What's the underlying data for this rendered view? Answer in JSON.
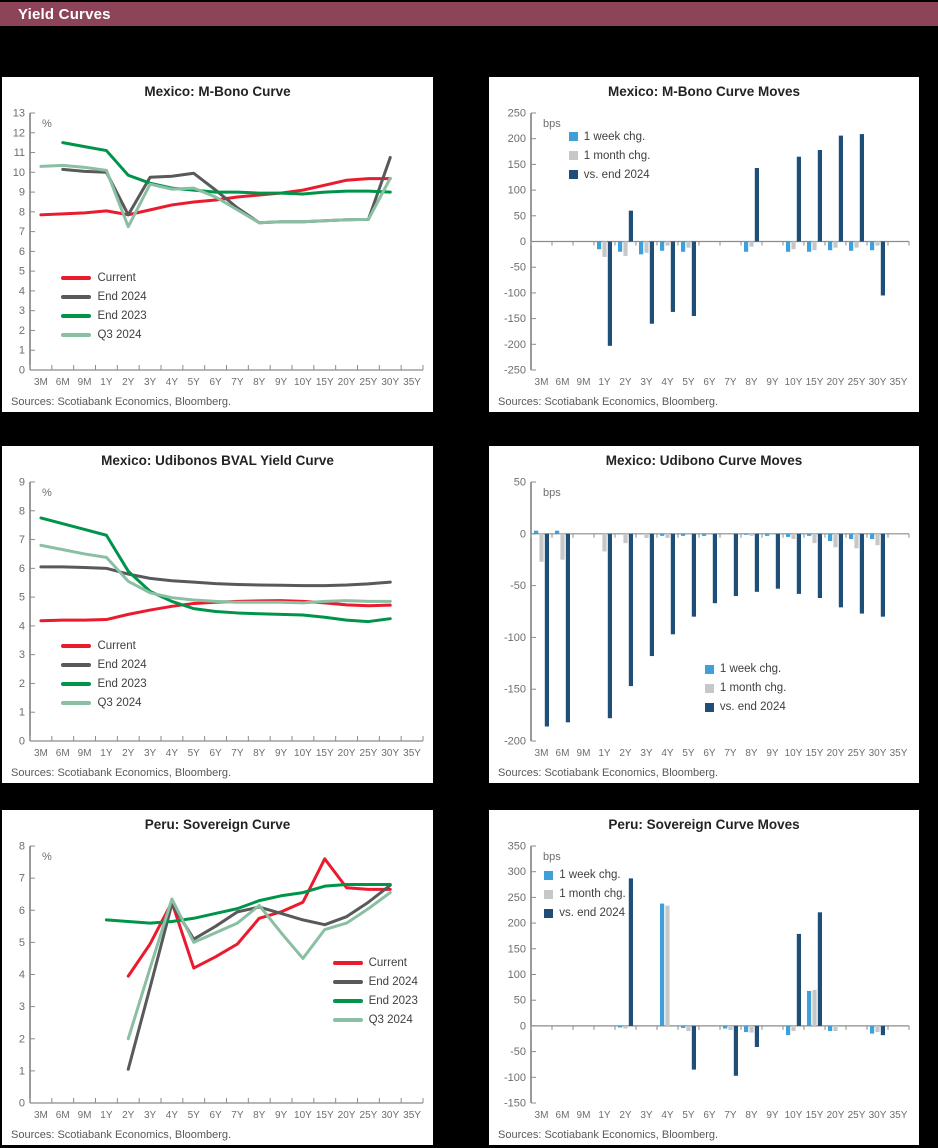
{
  "header": {
    "title": "Yield Curves",
    "bar_color": "#8D4458"
  },
  "sources_label": "Sources: Scotiabank Economics, Bloomberg.",
  "colors": {
    "current_red": "#EA1B2E",
    "end2024_gray": "#58595B",
    "end2023_green": "#00944A",
    "q32024_lightgreen": "#8ABFA3",
    "week_lightblue": "#3F9FD8",
    "month_gray": "#C6C7C9",
    "vs_end_navy": "#1F4E79",
    "axis_gray": "#6D6E71"
  },
  "chart_data": [
    {
      "type": "line",
      "title": "Mexico: M-Bono Curve",
      "unit": "%",
      "ylim": [
        0,
        13
      ],
      "ytick_step": 1,
      "legend_pos": {
        "x": 0.08,
        "y": 0.62
      },
      "categories": [
        "3M",
        "6M",
        "9M",
        "1Y",
        "2Y",
        "3Y",
        "4Y",
        "5Y",
        "6Y",
        "7Y",
        "8Y",
        "9Y",
        "10Y",
        "15Y",
        "20Y",
        "25Y",
        "30Y",
        "35Y"
      ],
      "series": [
        {
          "name": "Current",
          "color": "#EA1B2E",
          "values": [
            7.85,
            7.9,
            7.95,
            8.05,
            7.85,
            8.1,
            8.35,
            8.5,
            8.6,
            8.75,
            8.85,
            8.95,
            9.1,
            9.35,
            9.6,
            9.68,
            9.68,
            null
          ]
        },
        {
          "name": "End 2024",
          "color": "#58595B",
          "values": [
            null,
            10.15,
            10.05,
            10.0,
            7.85,
            9.75,
            9.8,
            9.95,
            9.1,
            8.2,
            7.45,
            7.5,
            7.5,
            7.55,
            7.6,
            7.62,
            10.75,
            null
          ]
        },
        {
          "name": "End 2023",
          "color": "#00944A",
          "values": [
            null,
            11.5,
            11.3,
            11.1,
            9.85,
            9.45,
            9.2,
            9.1,
            9.0,
            9.0,
            8.95,
            8.95,
            8.9,
            9.0,
            9.05,
            9.05,
            9.0,
            null
          ]
        },
        {
          "name": "Q3 2024",
          "color": "#8ABFA3",
          "values": [
            10.3,
            10.35,
            10.25,
            10.1,
            7.25,
            9.4,
            9.15,
            9.2,
            8.75,
            8.1,
            7.45,
            7.5,
            7.5,
            7.55,
            7.6,
            7.62,
            9.7,
            null
          ]
        }
      ]
    },
    {
      "type": "bar",
      "title": "Mexico: M-Bono Curve Moves",
      "unit": "bps",
      "ylim": [
        -250,
        250
      ],
      "ytick_step": 50,
      "legend_pos": {
        "x": 0.1,
        "y": 0.07
      },
      "categories": [
        "3M",
        "6M",
        "9M",
        "1Y",
        "2Y",
        "3Y",
        "4Y",
        "5Y",
        "6Y",
        "7Y",
        "8Y",
        "9Y",
        "10Y",
        "15Y",
        "20Y",
        "25Y",
        "30Y",
        "35Y"
      ],
      "series": [
        {
          "name": "1 week chg.",
          "color": "#3F9FD8",
          "values": [
            null,
            null,
            null,
            -15,
            -20,
            -25,
            -18,
            -20,
            null,
            null,
            -20,
            null,
            -20,
            -20,
            -17,
            -18,
            -17,
            null
          ]
        },
        {
          "name": "1 month chg.",
          "color": "#C6C7C9",
          "values": [
            null,
            null,
            null,
            -30,
            -28,
            -22,
            -8,
            -12,
            null,
            null,
            -10,
            null,
            -15,
            -17,
            -12,
            -12,
            -8,
            null
          ]
        },
        {
          "name": "vs. end 2024",
          "color": "#1F4E79",
          "values": [
            null,
            null,
            null,
            -203,
            60,
            -160,
            -137,
            -145,
            null,
            null,
            143,
            null,
            165,
            178,
            206,
            209,
            -105,
            null
          ]
        }
      ]
    },
    {
      "type": "line",
      "title": "Mexico: Udibonos BVAL Yield Curve",
      "unit": "%",
      "ylim": [
        0,
        9
      ],
      "ytick_step": 1,
      "legend_pos": {
        "x": 0.08,
        "y": 0.61
      },
      "categories": [
        "3M",
        "6M",
        "9M",
        "1Y",
        "2Y",
        "3Y",
        "4Y",
        "5Y",
        "6Y",
        "7Y",
        "8Y",
        "9Y",
        "10Y",
        "15Y",
        "20Y",
        "25Y",
        "30Y",
        "35Y"
      ],
      "series": [
        {
          "name": "Current",
          "color": "#EA1B2E",
          "values": [
            4.18,
            4.2,
            4.2,
            4.22,
            4.4,
            4.55,
            4.68,
            4.78,
            4.82,
            4.85,
            4.87,
            4.88,
            4.85,
            4.8,
            4.73,
            4.7,
            4.72,
            null
          ]
        },
        {
          "name": "End 2024",
          "color": "#58595B",
          "values": [
            6.05,
            6.05,
            6.03,
            6.0,
            5.8,
            5.65,
            5.57,
            5.52,
            5.47,
            5.44,
            5.42,
            5.41,
            5.4,
            5.4,
            5.42,
            5.46,
            5.52,
            null
          ]
        },
        {
          "name": "End 2023",
          "color": "#00944A",
          "values": [
            7.75,
            7.55,
            7.35,
            7.15,
            5.9,
            5.2,
            4.85,
            4.6,
            4.5,
            4.45,
            4.42,
            4.4,
            4.38,
            4.3,
            4.2,
            4.15,
            4.25,
            null
          ]
        },
        {
          "name": "Q3 2024",
          "color": "#8ABFA3",
          "values": [
            6.8,
            6.65,
            6.5,
            6.38,
            5.55,
            5.15,
            4.98,
            4.9,
            4.85,
            4.82,
            4.82,
            4.82,
            4.8,
            4.85,
            4.88,
            4.85,
            4.85,
            null
          ]
        }
      ]
    },
    {
      "type": "bar",
      "title": "Mexico: Udibono Curve Moves",
      "unit": "bps",
      "ylim": [
        -200,
        50
      ],
      "ytick_step": 50,
      "legend_pos": {
        "x": 0.46,
        "y": 0.7
      },
      "categories": [
        "3M",
        "6M",
        "9M",
        "1Y",
        "2Y",
        "3Y",
        "4Y",
        "5Y",
        "6Y",
        "7Y",
        "8Y",
        "9Y",
        "10Y",
        "15Y",
        "20Y",
        "25Y",
        "30Y",
        "35Y"
      ],
      "series": [
        {
          "name": "1 week chg.",
          "color": "#3F9FD8",
          "values": [
            3,
            3,
            null,
            null,
            null,
            null,
            -2,
            -2,
            -2,
            null,
            -1,
            -2,
            -3,
            -2,
            -7,
            -5,
            -5,
            null
          ]
        },
        {
          "name": "1 month chg.",
          "color": "#C6C7C9",
          "values": [
            -27,
            -25,
            null,
            -17,
            -9,
            -4,
            -4,
            null,
            null,
            null,
            -2,
            null,
            -5,
            -9,
            -13,
            -14,
            -11,
            null
          ]
        },
        {
          "name": "vs. end 2024",
          "color": "#1F4E79",
          "values": [
            -186,
            -182,
            null,
            -178,
            -147,
            -118,
            -97,
            -80,
            -67,
            -60,
            -56,
            -53,
            -58,
            -62,
            -71,
            -77,
            -80,
            null
          ]
        }
      ]
    },
    {
      "type": "line",
      "title": "Peru: Sovereign Curve",
      "unit": "%",
      "ylim": [
        0,
        8
      ],
      "ytick_step": 1,
      "legend_pos": {
        "x": 0.77,
        "y": 0.43
      },
      "categories": [
        "3M",
        "6M",
        "9M",
        "1Y",
        "2Y",
        "3Y",
        "4Y",
        "5Y",
        "6Y",
        "7Y",
        "8Y",
        "9Y",
        "10Y",
        "15Y",
        "20Y",
        "25Y",
        "30Y",
        "35Y"
      ],
      "series": [
        {
          "name": "Current",
          "color": "#EA1B2E",
          "values": [
            null,
            null,
            null,
            null,
            3.95,
            4.95,
            6.25,
            4.2,
            4.55,
            4.95,
            5.75,
            5.95,
            6.25,
            7.6,
            6.7,
            6.65,
            6.65,
            null
          ]
        },
        {
          "name": "End 2024",
          "color": "#58595B",
          "values": [
            null,
            null,
            null,
            null,
            1.05,
            3.6,
            6.2,
            5.1,
            5.5,
            5.95,
            6.1,
            5.9,
            5.7,
            5.55,
            5.8,
            6.25,
            6.78,
            null
          ]
        },
        {
          "name": "End 2023",
          "color": "#00944A",
          "values": [
            null,
            null,
            null,
            5.7,
            5.65,
            5.6,
            5.65,
            5.75,
            5.9,
            6.05,
            6.3,
            6.45,
            6.55,
            6.75,
            6.8,
            6.8,
            6.8,
            null
          ]
        },
        {
          "name": "Q3 2024",
          "color": "#8ABFA3",
          "values": [
            null,
            null,
            null,
            null,
            2.0,
            4.2,
            6.35,
            5.0,
            5.3,
            5.6,
            6.15,
            5.3,
            4.5,
            5.4,
            5.6,
            6.05,
            6.55,
            null
          ]
        }
      ]
    },
    {
      "type": "bar",
      "title": "Peru: Sovereign Curve Moves",
      "unit": "bps",
      "ylim": [
        -150,
        350
      ],
      "ytick_step": 50,
      "legend_pos": {
        "x": 0.035,
        "y": 0.09
      },
      "categories": [
        "3M",
        "6M",
        "9M",
        "1Y",
        "2Y",
        "3Y",
        "4Y",
        "5Y",
        "6Y",
        "7Y",
        "8Y",
        "9Y",
        "10Y",
        "15Y",
        "20Y",
        "25Y",
        "30Y",
        "35Y"
      ],
      "series": [
        {
          "name": "1 week chg.",
          "color": "#3F9FD8",
          "values": [
            null,
            null,
            null,
            null,
            -3,
            null,
            238,
            -4,
            null,
            -5,
            -12,
            null,
            -18,
            68,
            -10,
            null,
            -15,
            null
          ]
        },
        {
          "name": "1 month chg.",
          "color": "#C6C7C9",
          "values": [
            null,
            null,
            null,
            null,
            -5,
            null,
            234,
            -10,
            null,
            -8,
            -13,
            null,
            -10,
            70,
            -10,
            null,
            -12,
            null
          ]
        },
        {
          "name": "vs. end 2024",
          "color": "#1F4E79",
          "values": [
            null,
            null,
            null,
            null,
            287,
            null,
            null,
            -85,
            null,
            -97,
            -41,
            null,
            179,
            221,
            null,
            null,
            -18,
            null
          ]
        }
      ]
    }
  ]
}
